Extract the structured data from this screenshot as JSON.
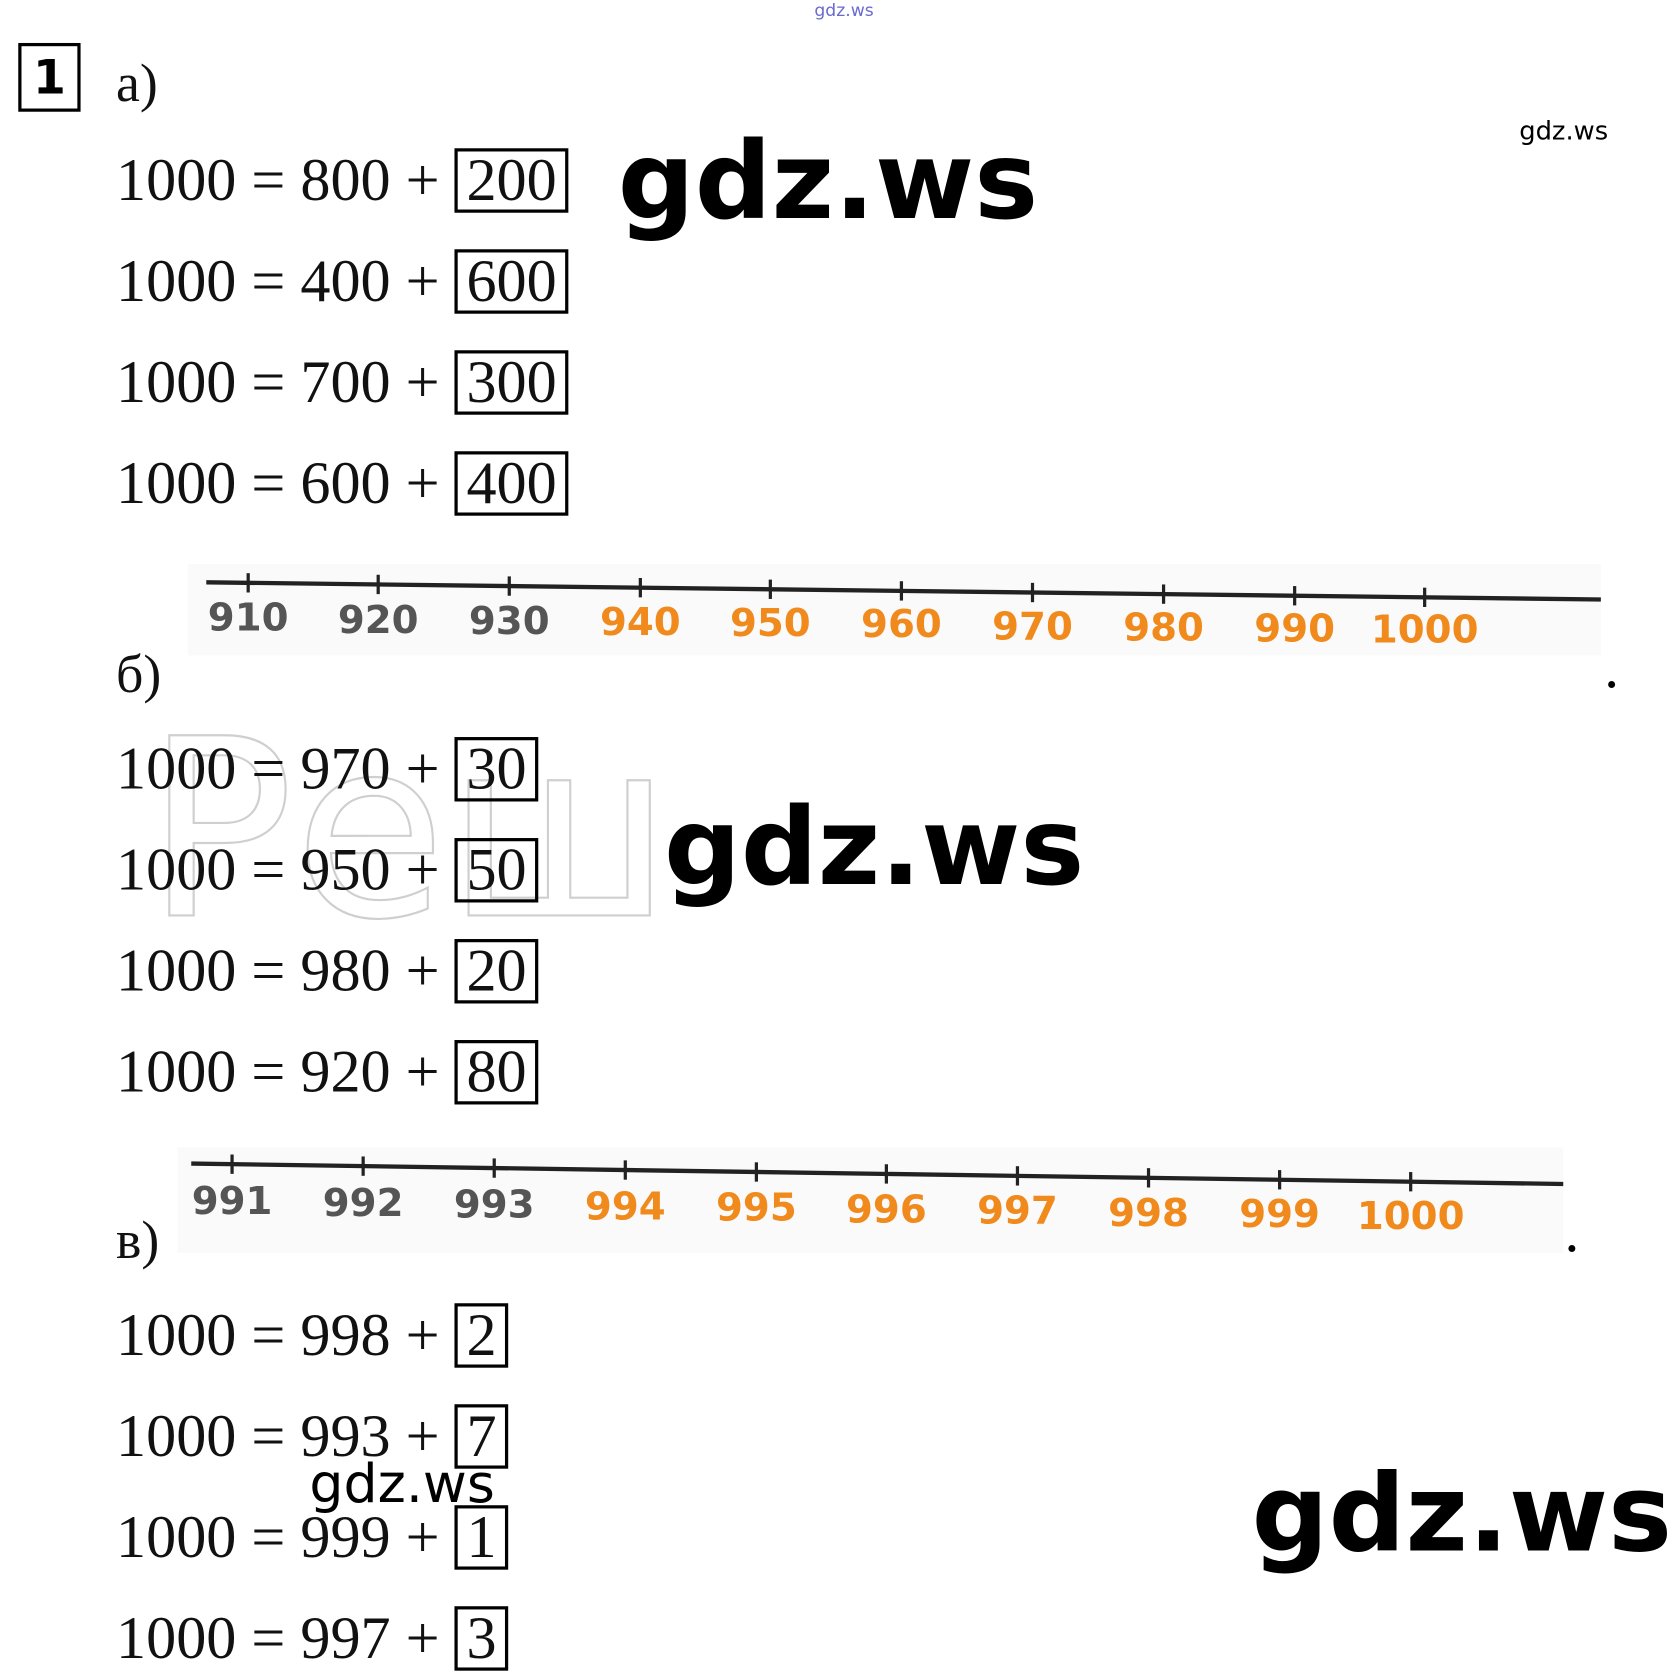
{
  "task_number": "1",
  "sections": [
    {
      "label": "а)",
      "equations": [
        {
          "expression": "1000 = 800 +",
          "answer": "200"
        },
        {
          "expression": "1000 = 400 +",
          "answer": "600"
        },
        {
          "expression": "1000 = 700 +",
          "answer": "300"
        },
        {
          "expression": "1000 = 600 +",
          "answer": "400"
        }
      ]
    },
    {
      "label": "б)",
      "number_line": [
        {
          "text": "910",
          "color": "#555555"
        },
        {
          "text": "920",
          "color": "#555555"
        },
        {
          "text": "930",
          "color": "#555555"
        },
        {
          "text": "940",
          "color": "#f08a1c"
        },
        {
          "text": "950",
          "color": "#f08a1c"
        },
        {
          "text": "960",
          "color": "#f08a1c"
        },
        {
          "text": "970",
          "color": "#f08a1c"
        },
        {
          "text": "980",
          "color": "#f08a1c"
        },
        {
          "text": "990",
          "color": "#f08a1c"
        },
        {
          "text": "1000",
          "color": "#f08a1c"
        }
      ],
      "equations": [
        {
          "expression": "1000 = 970 +",
          "answer": "30"
        },
        {
          "expression": "1000 = 950 +",
          "answer": "50"
        },
        {
          "expression": "1000 = 980 +",
          "answer": "20"
        },
        {
          "expression": "1000 = 920 +",
          "answer": "80"
        }
      ]
    },
    {
      "label": "в)",
      "number_line": [
        {
          "text": "991",
          "color": "#555555"
        },
        {
          "text": "992",
          "color": "#555555"
        },
        {
          "text": "993",
          "color": "#555555"
        },
        {
          "text": "994",
          "color": "#f08a1c"
        },
        {
          "text": "995",
          "color": "#f08a1c"
        },
        {
          "text": "996",
          "color": "#f08a1c"
        },
        {
          "text": "997",
          "color": "#f08a1c"
        },
        {
          "text": "998",
          "color": "#f08a1c"
        },
        {
          "text": "999",
          "color": "#f08a1c"
        },
        {
          "text": "1000",
          "color": "#f08a1c"
        }
      ],
      "equations": [
        {
          "expression": "1000 = 998 +",
          "answer": "2"
        },
        {
          "expression": "1000 = 993 +",
          "answer": "7"
        },
        {
          "expression": "1000 = 999 +",
          "answer": "1"
        },
        {
          "expression": "1000 = 997 +",
          "answer": "3"
        }
      ]
    }
  ],
  "watermarks": [
    "gdz.ws",
    "gdz.ws",
    "gdz.ws",
    "gdz.ws",
    "gdz.ws",
    "gdz.ws"
  ],
  "faint_watermark": "Реш"
}
